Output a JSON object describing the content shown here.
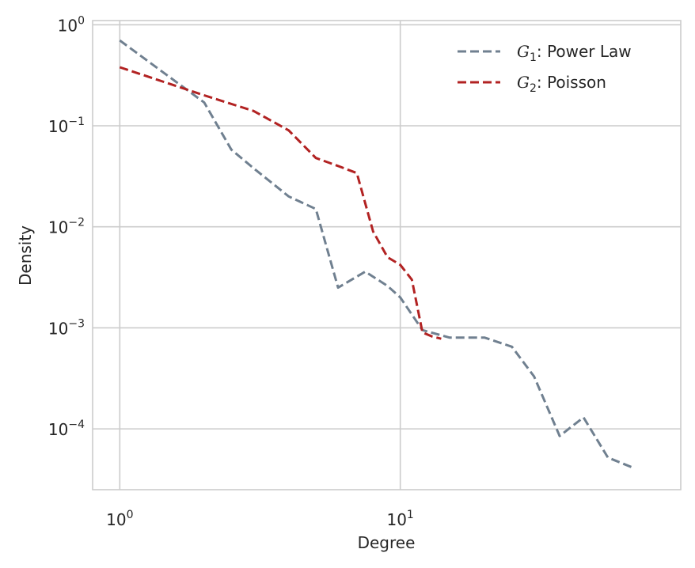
{
  "chart_data": {
    "type": "line",
    "x_scale": "log",
    "y_scale": "log",
    "xlabel": "Degree",
    "ylabel": "Density",
    "xlim": [
      0.8,
      100
    ],
    "ylim": [
      2.5e-05,
      1.1
    ],
    "grid": true,
    "legend_position": "top-right",
    "x_ticks": [
      {
        "base": "10",
        "exp": "0",
        "value": 1
      },
      {
        "base": "10",
        "exp": "1",
        "value": 10
      }
    ],
    "y_ticks": [
      {
        "base": "10",
        "exp": "0",
        "value": 1
      },
      {
        "base": "10",
        "exp": "−1",
        "value": 0.1
      },
      {
        "base": "10",
        "exp": "−2",
        "value": 0.01
      },
      {
        "base": "10",
        "exp": "−3",
        "value": 0.001
      },
      {
        "base": "10",
        "exp": "−4",
        "value": 0.0001
      }
    ],
    "series": [
      {
        "name_math": "G",
        "name_sub": "1",
        "name_rest": ": Power Law",
        "color": "#708090",
        "dash": "dashed",
        "x": [
          1,
          2,
          2.5,
          3,
          4,
          5,
          6,
          7.5,
          9,
          10,
          12,
          15,
          20,
          25,
          30,
          37,
          45,
          55,
          68
        ],
        "y": [
          0.7,
          0.17,
          0.058,
          0.038,
          0.02,
          0.015,
          0.0025,
          0.0036,
          0.0026,
          0.002,
          0.00095,
          0.0008,
          0.0008,
          0.00065,
          0.00033,
          8.5e-05,
          0.00013,
          5.2e-05,
          4.1e-05
        ]
      },
      {
        "name_math": "G",
        "name_sub": "2",
        "name_rest": ": Poisson",
        "color": "#b22222",
        "dash": "dashed",
        "x": [
          1,
          2,
          3,
          4,
          5,
          6,
          7,
          8,
          9,
          10,
          11,
          12,
          13,
          14
        ],
        "y": [
          0.38,
          0.2,
          0.14,
          0.09,
          0.048,
          0.04,
          0.034,
          0.009,
          0.005,
          0.0042,
          0.003,
          0.0009,
          0.00082,
          0.00078
        ]
      }
    ]
  }
}
